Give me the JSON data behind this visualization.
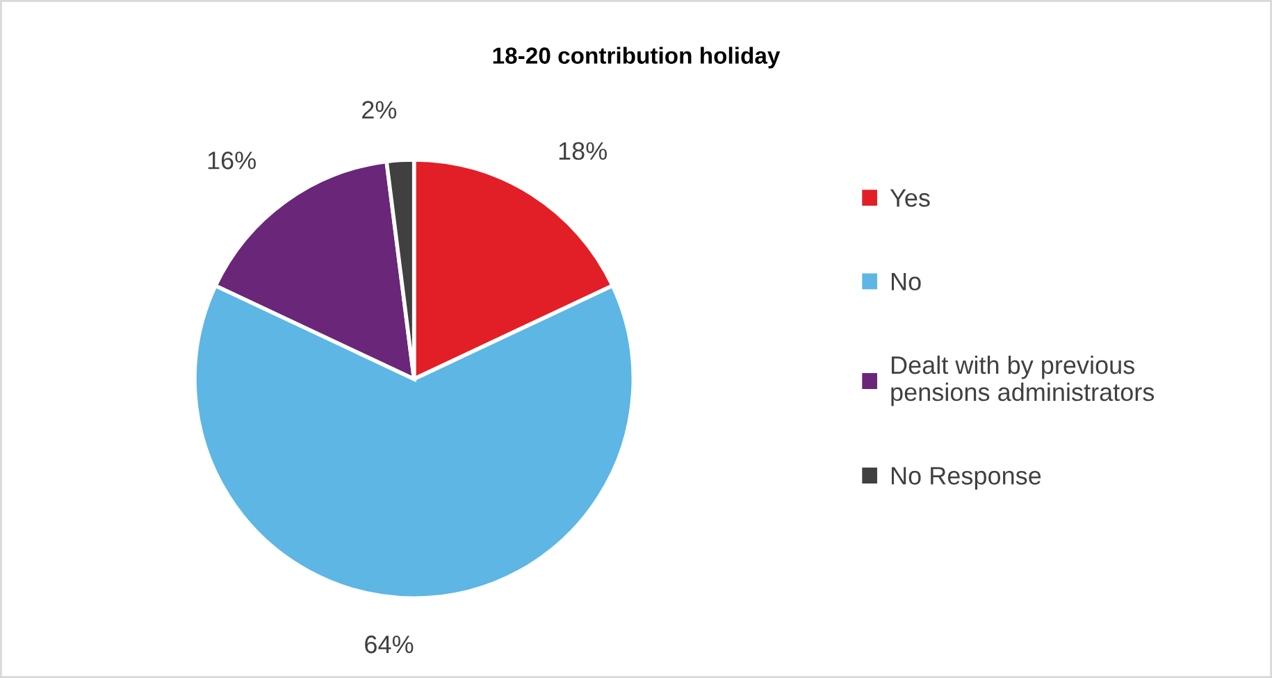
{
  "chart_data": {
    "type": "pie",
    "title": "18-20 contribution holiday",
    "categories": [
      "Yes",
      "No",
      "Dealt with by previous\npensions administrators",
      "No Response"
    ],
    "values": [
      18,
      64,
      16,
      2
    ],
    "colors": [
      "#e21f26",
      "#5db6e4",
      "#6a2678",
      "#404040"
    ],
    "value_labels": [
      "18%",
      "64%",
      "16%",
      "2%"
    ],
    "legend": "right"
  }
}
